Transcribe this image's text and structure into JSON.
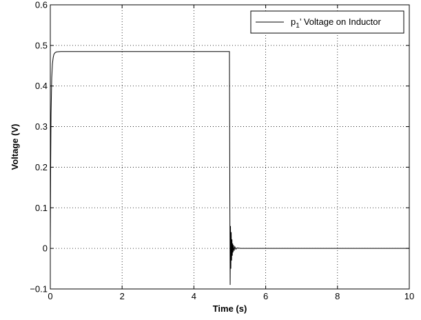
{
  "chart_data": {
    "type": "line",
    "title": "",
    "xlabel": "Time (s)",
    "ylabel": "Voltage (V)",
    "xlim": [
      0,
      10
    ],
    "ylim": [
      -0.1,
      0.6
    ],
    "xticks": [
      0,
      2,
      4,
      6,
      8,
      10
    ],
    "xtick_labels": [
      "0",
      "2",
      "4",
      "6",
      "8",
      "10"
    ],
    "yticks": [
      -0.1,
      0,
      0.1,
      0.2,
      0.3,
      0.4,
      0.5,
      0.6
    ],
    "ytick_labels": [
      "−0.1",
      "0",
      "0.1",
      "0.2",
      "0.3",
      "0.4",
      "0.5",
      "0.6"
    ],
    "grid": true,
    "legend_position": "top-right",
    "series": [
      {
        "legend_label_main": "p",
        "legend_label_sub": "1",
        "legend_label_rest": "’ Voltage on Inductor",
        "color": "#000000",
        "x": [
          0,
          0.01,
          0.02,
          0.04,
          0.06,
          0.08,
          0.1,
          0.13,
          0.17,
          0.22,
          0.3,
          1.0,
          2.0,
          3.0,
          4.0,
          4.99,
          5.0,
          5.01,
          5.02,
          5.03,
          5.04,
          5.05,
          5.06,
          5.07,
          5.08,
          5.09,
          5.1,
          5.12,
          5.14,
          5.17,
          5.2,
          5.3,
          6.0,
          7.0,
          8.0,
          9.0,
          10.0
        ],
        "y": [
          0.0,
          0.2,
          0.33,
          0.42,
          0.455,
          0.47,
          0.478,
          0.482,
          0.484,
          0.4845,
          0.485,
          0.485,
          0.485,
          0.485,
          0.485,
          0.485,
          0.15,
          -0.09,
          0.055,
          -0.05,
          0.04,
          -0.03,
          0.022,
          -0.018,
          0.012,
          -0.01,
          0.008,
          -0.006,
          0.004,
          -0.002,
          0.001,
          0.0,
          0.0,
          0.0,
          0.0,
          0.0,
          0.0
        ]
      }
    ]
  }
}
